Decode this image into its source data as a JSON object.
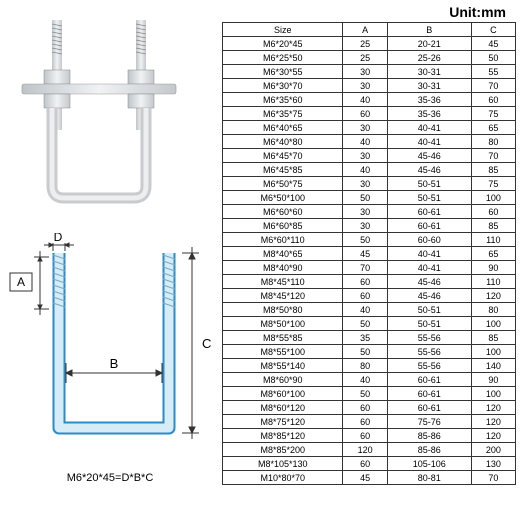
{
  "unit_label": "Unit:mm",
  "formula": "M6*20*45=D*B*C",
  "diagram": {
    "labels": {
      "A": "A",
      "B": "B",
      "C": "C",
      "D": "D"
    },
    "colors": {
      "ubolt_stroke": "#2a8cc9",
      "ubolt_fill": "#d6ecf7",
      "dim_line": "#333333",
      "arrow": "#333333",
      "crosshatch": "#888888"
    }
  },
  "table": {
    "columns": [
      "Size",
      "A",
      "B",
      "C"
    ],
    "rows": [
      [
        "M6*20*45",
        "25",
        "20-21",
        "45"
      ],
      [
        "M6*25*50",
        "25",
        "25-26",
        "50"
      ],
      [
        "M6*30*55",
        "30",
        "30-31",
        "55"
      ],
      [
        "M6*30*70",
        "30",
        "30-31",
        "70"
      ],
      [
        "M6*35*60",
        "40",
        "35-36",
        "60"
      ],
      [
        "M6*35*75",
        "60",
        "35-36",
        "75"
      ],
      [
        "M6*40*65",
        "30",
        "40-41",
        "65"
      ],
      [
        "M6*40*80",
        "40",
        "40-41",
        "80"
      ],
      [
        "M6*45*70",
        "30",
        "45-46",
        "70"
      ],
      [
        "M6*45*85",
        "40",
        "45-46",
        "85"
      ],
      [
        "M6*50*75",
        "30",
        "50-51",
        "75"
      ],
      [
        "M6*50*100",
        "50",
        "50-51",
        "100"
      ],
      [
        "M6*60*60",
        "30",
        "60-61",
        "60"
      ],
      [
        "M6*60*85",
        "30",
        "60-61",
        "85"
      ],
      [
        "M6*60*110",
        "50",
        "60-60",
        "110"
      ],
      [
        "M8*40*65",
        "45",
        "40-41",
        "65"
      ],
      [
        "M8*40*90",
        "70",
        "40-41",
        "90"
      ],
      [
        "M8*45*110",
        "60",
        "45-46",
        "110"
      ],
      [
        "M8*45*120",
        "60",
        "45-46",
        "120"
      ],
      [
        "M8*50*80",
        "40",
        "50-51",
        "80"
      ],
      [
        "M8*50*100",
        "50",
        "50-51",
        "100"
      ],
      [
        "M8*55*85",
        "35",
        "55-56",
        "85"
      ],
      [
        "M8*55*100",
        "50",
        "55-56",
        "100"
      ],
      [
        "M8*55*140",
        "80",
        "55-56",
        "140"
      ],
      [
        "M8*60*90",
        "40",
        "60-61",
        "90"
      ],
      [
        "M8*60*100",
        "50",
        "60-61",
        "100"
      ],
      [
        "M8*60*120",
        "60",
        "60-61",
        "120"
      ],
      [
        "M8*75*120",
        "60",
        "75-76",
        "120"
      ],
      [
        "M8*85*120",
        "60",
        "85-86",
        "120"
      ],
      [
        "M8*85*200",
        "120",
        "85-86",
        "200"
      ],
      [
        "M8*105*130",
        "60",
        "105-106",
        "130"
      ],
      [
        "M10*80*70",
        "45",
        "80-81",
        "70"
      ]
    ]
  }
}
